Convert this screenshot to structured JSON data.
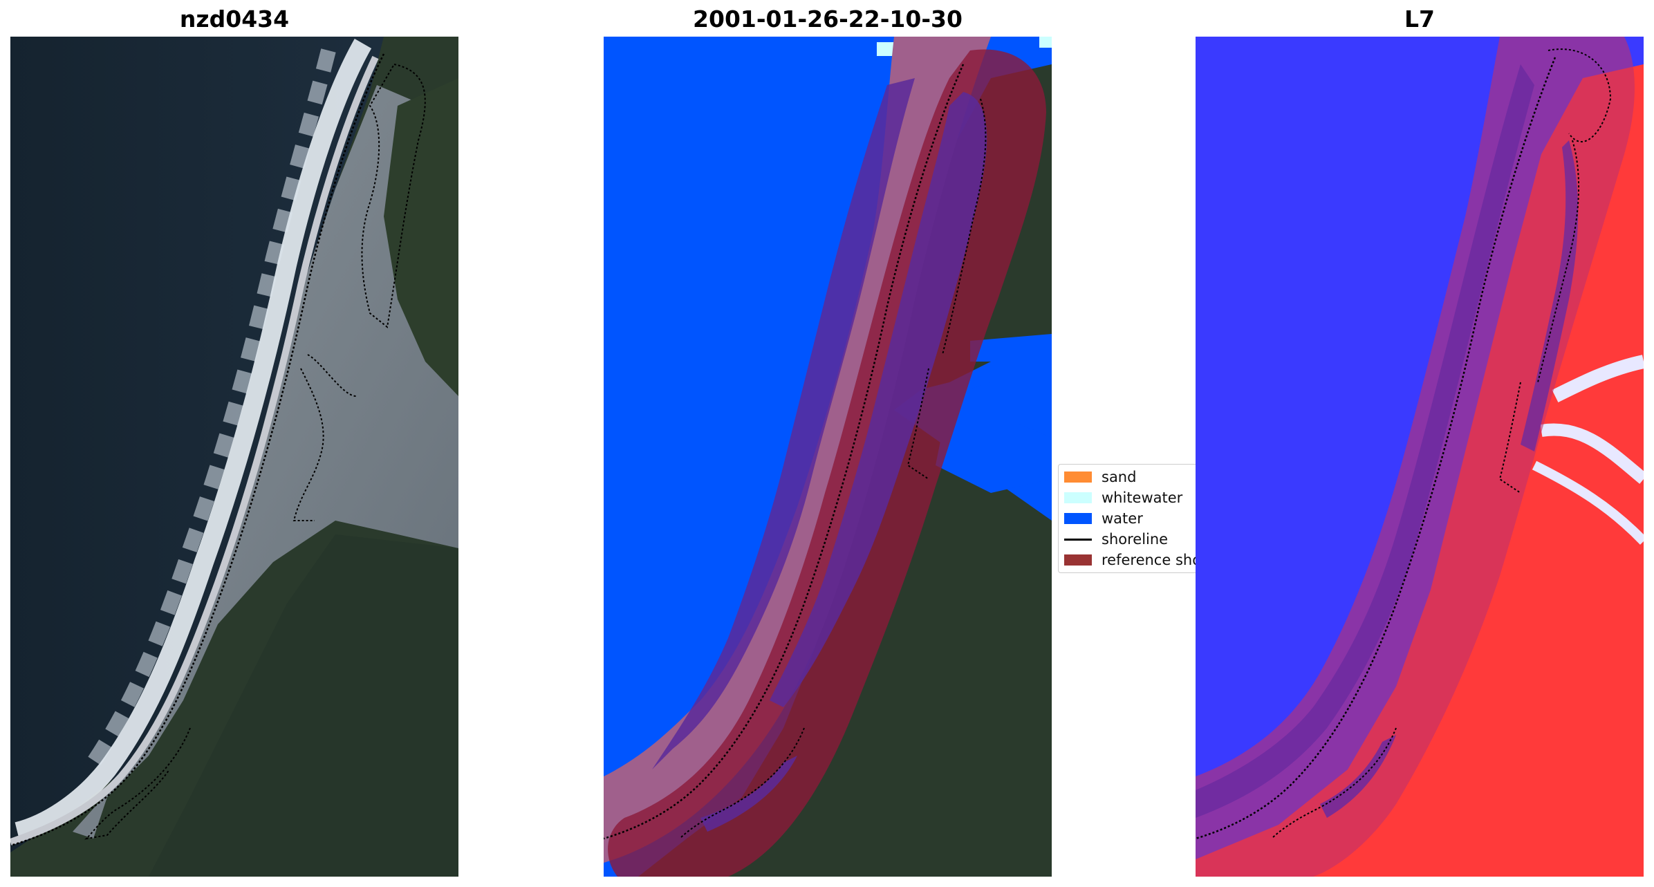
{
  "panels": [
    {
      "title": "nzd0434"
    },
    {
      "title": "2001-01-26-22-10-30"
    },
    {
      "title": "L7"
    }
  ],
  "legend": {
    "items": [
      {
        "label": "sand",
        "color": "#ff8c33"
      },
      {
        "label": "whitewater",
        "color": "#ccffff"
      },
      {
        "label": "water",
        "color": "#0055ff"
      },
      {
        "label": "shoreline",
        "color": "#000000"
      },
      {
        "label": "reference shoreline",
        "color": "#993333"
      }
    ]
  },
  "colors": {
    "ocean_dark": "#1a2a3a",
    "land_dark": "#2b3a2a",
    "sand_gray": "#8a8f9a",
    "classified_water": "#0055ff",
    "buffer_overlay": "#8b1a3a",
    "purple_sand": "#5a2a9a",
    "index_blue": "#2020ff",
    "index_red": "#ff2020"
  }
}
